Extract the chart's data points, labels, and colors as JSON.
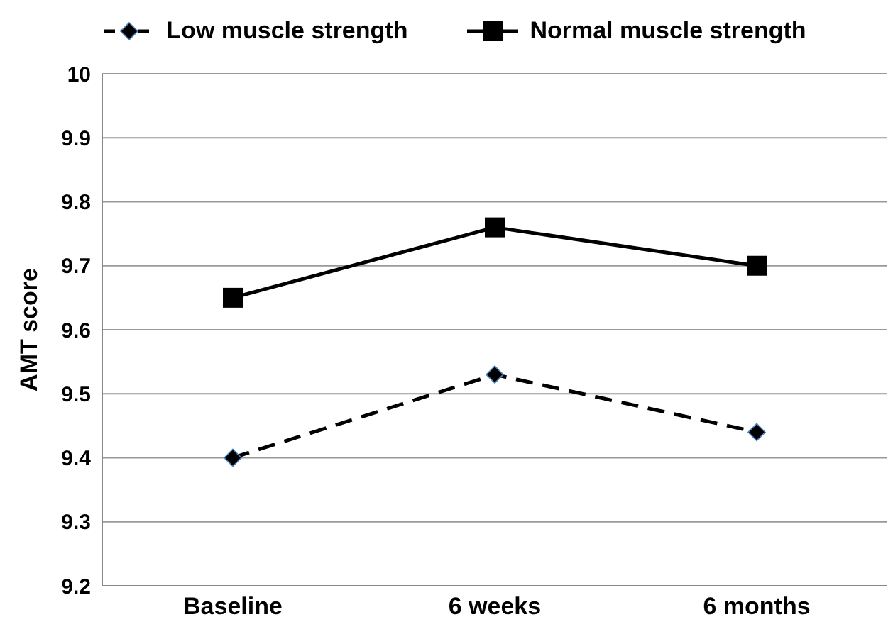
{
  "chart_data": {
    "type": "line",
    "ylabel": "AMT score",
    "categories": [
      "Baseline",
      "6 weeks",
      "6 months"
    ],
    "series": [
      {
        "name": "Low muscle strength",
        "color": "#000000",
        "values": [
          9.4,
          9.53,
          9.44
        ],
        "marker": "diamond",
        "line_style": "dashed"
      },
      {
        "name": "Normal muscle strength",
        "color": "#000000",
        "values": [
          9.65,
          9.76,
          9.7
        ],
        "marker": "square",
        "line_style": "solid"
      }
    ],
    "ylim": [
      9.2,
      10
    ],
    "yticks": [
      9.2,
      9.3,
      9.4,
      9.5,
      9.6,
      9.7,
      9.8,
      9.9,
      10
    ],
    "grid": "y",
    "legend": "top"
  }
}
